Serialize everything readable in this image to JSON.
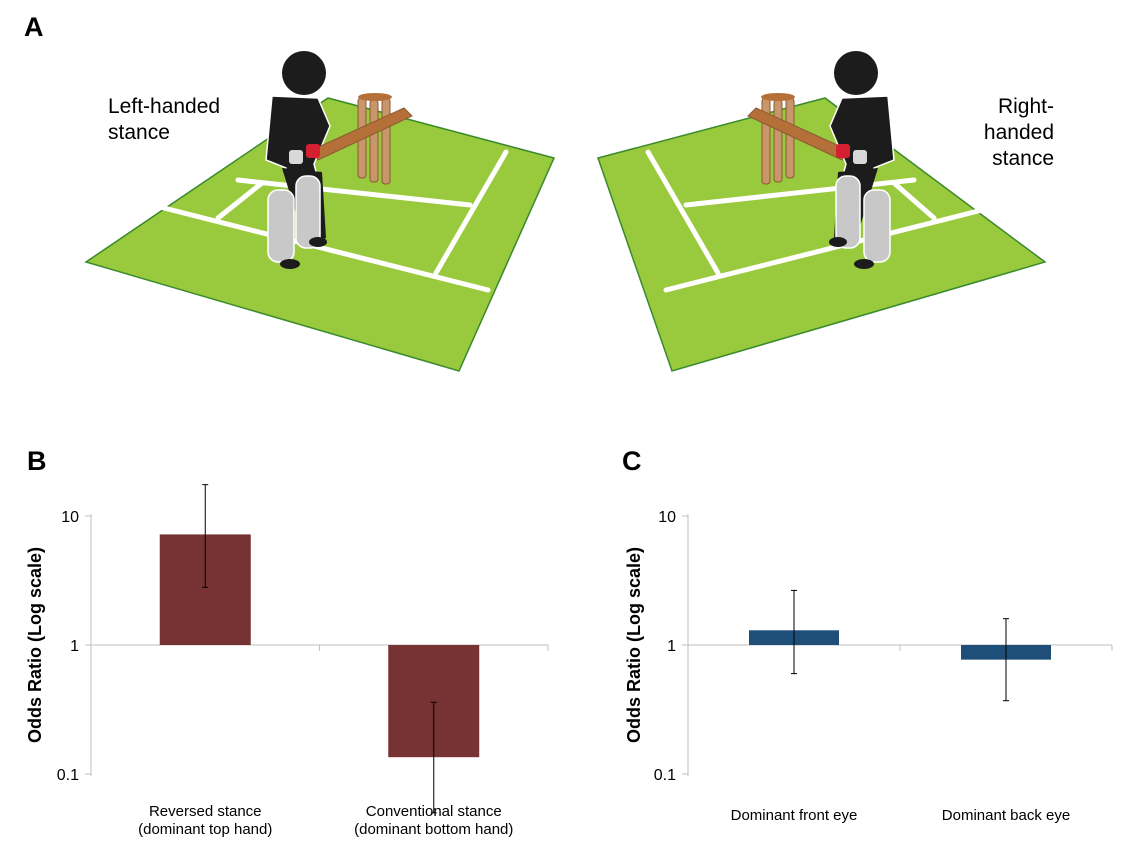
{
  "panels": {
    "a": {
      "letter": "A",
      "left_label": [
        "Left-handed",
        "stance"
      ],
      "right_label": [
        "Right-handed",
        "stance"
      ],
      "colors": {
        "field": "#99c93c",
        "field_edge": "#3a8a2c",
        "lines": "#ffffff",
        "batter": "#1c1c1c",
        "pads": "#c8c8c8",
        "bat": "#b5703a",
        "stumps": "#c8966a",
        "glove": "#d42030"
      }
    },
    "b": {
      "letter": "B"
    },
    "c": {
      "letter": "C"
    }
  },
  "chart_data": [
    {
      "panel": "B",
      "type": "bar",
      "yscale": "log",
      "ylabel": "Odds Ratio (Log scale)",
      "ylim": [
        0.05,
        20
      ],
      "yticks": [
        0.1,
        1,
        10
      ],
      "ytick_labels": [
        "0.1",
        "1",
        "10"
      ],
      "baseline": 1,
      "categories": [
        [
          "Reversed stance",
          "(dominant top hand)"
        ],
        [
          "Conventional stance",
          "(dominant bottom hand)"
        ]
      ],
      "values": [
        7.2,
        0.135
      ],
      "error_low": [
        2.8,
        0.05
      ],
      "error_high": [
        17.5,
        0.36
      ],
      "color": "#773333",
      "legend": false,
      "grid": false
    },
    {
      "panel": "C",
      "type": "bar",
      "yscale": "log",
      "ylabel": "Odds Ratio (Log scale)",
      "ylim": [
        0.05,
        20
      ],
      "yticks": [
        0.1,
        1,
        10
      ],
      "ytick_labels": [
        "0.1",
        "1",
        "10"
      ],
      "baseline": 1,
      "categories": [
        [
          "Dominant front eye"
        ],
        [
          "Dominant back eye"
        ]
      ],
      "values": [
        1.3,
        0.77
      ],
      "error_low": [
        0.6,
        0.37
      ],
      "error_high": [
        2.65,
        1.6
      ],
      "color": "#1f4e79",
      "legend": false,
      "grid": false
    }
  ]
}
